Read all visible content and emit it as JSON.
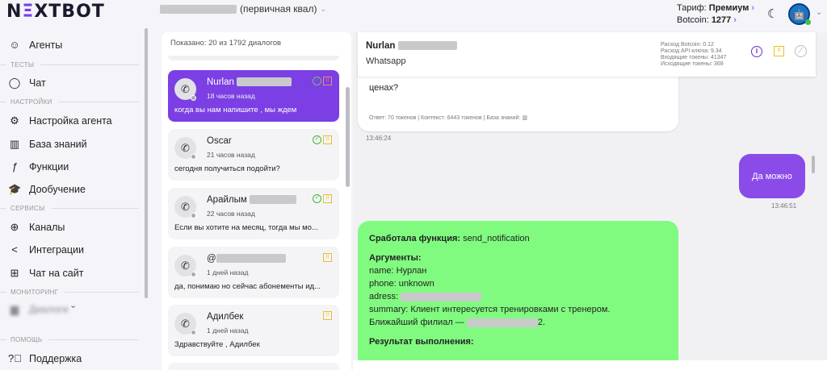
{
  "header": {
    "logo": "NEXTBOT",
    "agent_suffix": "(первичная квал)",
    "tariff_label": "Тариф:",
    "tariff_value": "Премиум",
    "botcoin_label": "Botcoin:",
    "botcoin_value": "1277"
  },
  "sidebar": {
    "items": [
      {
        "label": "Агенты",
        "icon": "robot-icon"
      },
      {
        "section": "ТЕСТЫ"
      },
      {
        "label": "Чат",
        "icon": "chat-bubble-icon"
      },
      {
        "section": "НАСТРОЙКИ"
      },
      {
        "label": "Настройка агента",
        "icon": "user-settings-icon"
      },
      {
        "label": "База знаний",
        "icon": "books-icon"
      },
      {
        "label": "Функции",
        "icon": "function-icon"
      },
      {
        "label": "Дообучение",
        "icon": "graduation-cap-icon"
      },
      {
        "section": "СЕРВИСЫ"
      },
      {
        "label": "Каналы",
        "icon": "globe-icon"
      },
      {
        "label": "Интеграции",
        "icon": "share-icon"
      },
      {
        "label": "Чат на сайт",
        "icon": "chat-plus-icon"
      },
      {
        "section": "МОНИТОРИНГ"
      },
      {
        "label": "Диалоги",
        "icon": "dialogs-icon"
      },
      {
        "section": "ПОМОЩЬ"
      },
      {
        "label": "Поддержка",
        "icon": "help-icon"
      }
    ]
  },
  "dialogs": {
    "summary": "Показано: 20 из 1792 диалогов",
    "items": [
      {
        "name": "Nurlan",
        "time": "18 часов назад",
        "message": "когда вы нам напишите , мы ждем",
        "active": true,
        "checked": true
      },
      {
        "name": "Oscar",
        "time": "21 часов назад",
        "message": "сегодня получиться подойти?",
        "checked": true
      },
      {
        "name": "Арайлым",
        "time": "22 часов назад",
        "message": "Если вы хотите на месяц, тогда мы мо...",
        "checked": true
      },
      {
        "name": "@",
        "time": "1 дней назад",
        "message": "да, понимаю но сейчас абонементы ид...",
        "checked": false
      },
      {
        "name": "Адилбек",
        "time": "1 дней назад",
        "message": "Здравствуйте , Адилбек",
        "checked": false
      }
    ]
  },
  "chat": {
    "name": "Nurlan",
    "channel": "Whatsapp",
    "stats": [
      "Расход Botcoin: 0.12",
      "Расход API ключа: 9.34",
      "Входящие токены: 41347",
      "Исходящие токены: 368"
    ],
    "messages": [
      {
        "text": "ценах?",
        "meta": "Ответ: 70 токенов | Контекст: 6443 токенов | База знаний:",
        "time": "13:46:24"
      },
      {
        "text": "Да можно",
        "time": "13:46:51"
      }
    ],
    "function": {
      "title": "Сработала функция:",
      "name": "send_notification",
      "args_title": "Аргументы:",
      "name_arg": "name: Нурлан",
      "phone_arg": "phone: unknown",
      "address_arg": "adress: ",
      "summary_arg": "summary: Клиент интересуется тренировками с тренером.",
      "branch": "Ближайший филиал — ",
      "branch_end": "2.",
      "result_title": "Результат выполнения:"
    }
  },
  "colors": {
    "accent": "#7b3fe4",
    "function_bg": "#80fb80",
    "pause": "#e8c02a"
  }
}
